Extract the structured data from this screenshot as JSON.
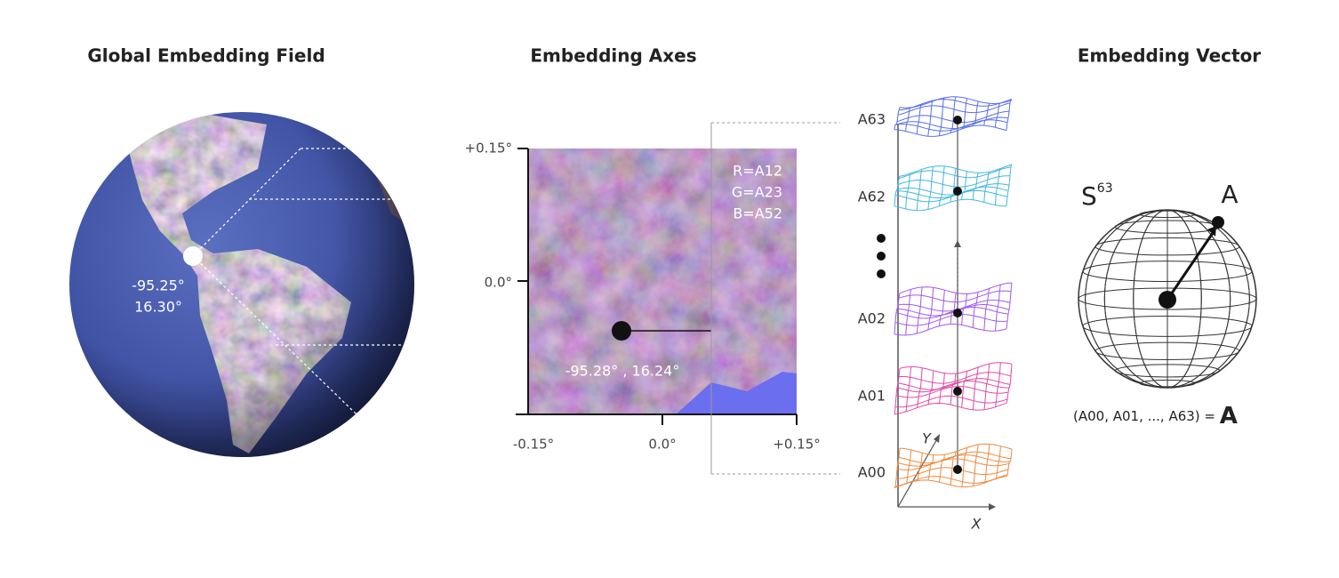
{
  "globe": {
    "title": "Global Embedding Field",
    "point_label": [
      "-95.25°",
      "16.30°"
    ]
  },
  "axes": {
    "title": "Embedding Axes",
    "y_ticks": [
      "+0.15°",
      "0.0°"
    ],
    "x_ticks": [
      "-0.15°",
      "0.0°",
      "+0.15°"
    ],
    "channels": [
      "R=A12",
      "G=A23",
      "B=A52"
    ],
    "point_label": "-95.28° , 16.24°"
  },
  "layers": {
    "labels": [
      "A63",
      "A62",
      "A02",
      "A01",
      "A00"
    ],
    "x_axis": "X",
    "y_axis": "Y"
  },
  "vector": {
    "title": "Embedding Vector",
    "sphere": "S",
    "sphere_dim": "63",
    "point": "A",
    "equation": "(A00, A01, ..., A63) =",
    "equation_result": "A"
  }
}
